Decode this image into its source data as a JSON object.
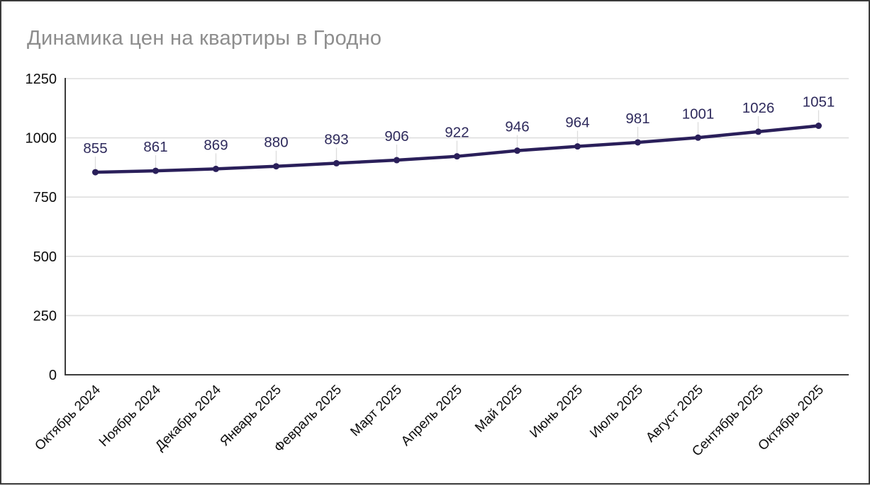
{
  "chart": {
    "title": "Динамика цен на квартиры в Гродно"
  },
  "chart_data": {
    "type": "line",
    "title": "Динамика цен на квартиры в Гродно",
    "categories": [
      "Октябрь 2024",
      "Ноябрь 2024",
      "Декабрь 2024",
      "Январь 2025",
      "Февраль 2025",
      "Март 2025",
      "Апрель 2025",
      "Май 2025",
      "Июнь 2025",
      "Июль 2025",
      "Август 2025",
      "Сентябрь 2025",
      "Октябрь 2025"
    ],
    "values": [
      855,
      861,
      869,
      880,
      893,
      906,
      922,
      946,
      964,
      981,
      1001,
      1026,
      1051
    ],
    "data_labels": [
      "855",
      "861",
      "869",
      "880",
      "893",
      "906",
      "922",
      "946",
      "964",
      "981",
      "1001",
      "1026",
      "1051"
    ],
    "xlabel": "",
    "ylabel": "",
    "ylim": [
      0,
      1250
    ],
    "y_ticks": [
      0,
      250,
      500,
      750,
      1000,
      1250
    ],
    "grid": true,
    "legend": false,
    "legend_position": "none",
    "marker": "circle",
    "colors": {
      "line": "#2a1f5a",
      "marker": "#2a1f5a",
      "data_label": "#2e2a5c",
      "grid": "#dedede",
      "axis": "#3c3c3c",
      "tick_label": "#0d0d0d",
      "title": "#8d8d8d",
      "leader_line": "#dcdcdc",
      "background": "#ffffff"
    }
  }
}
